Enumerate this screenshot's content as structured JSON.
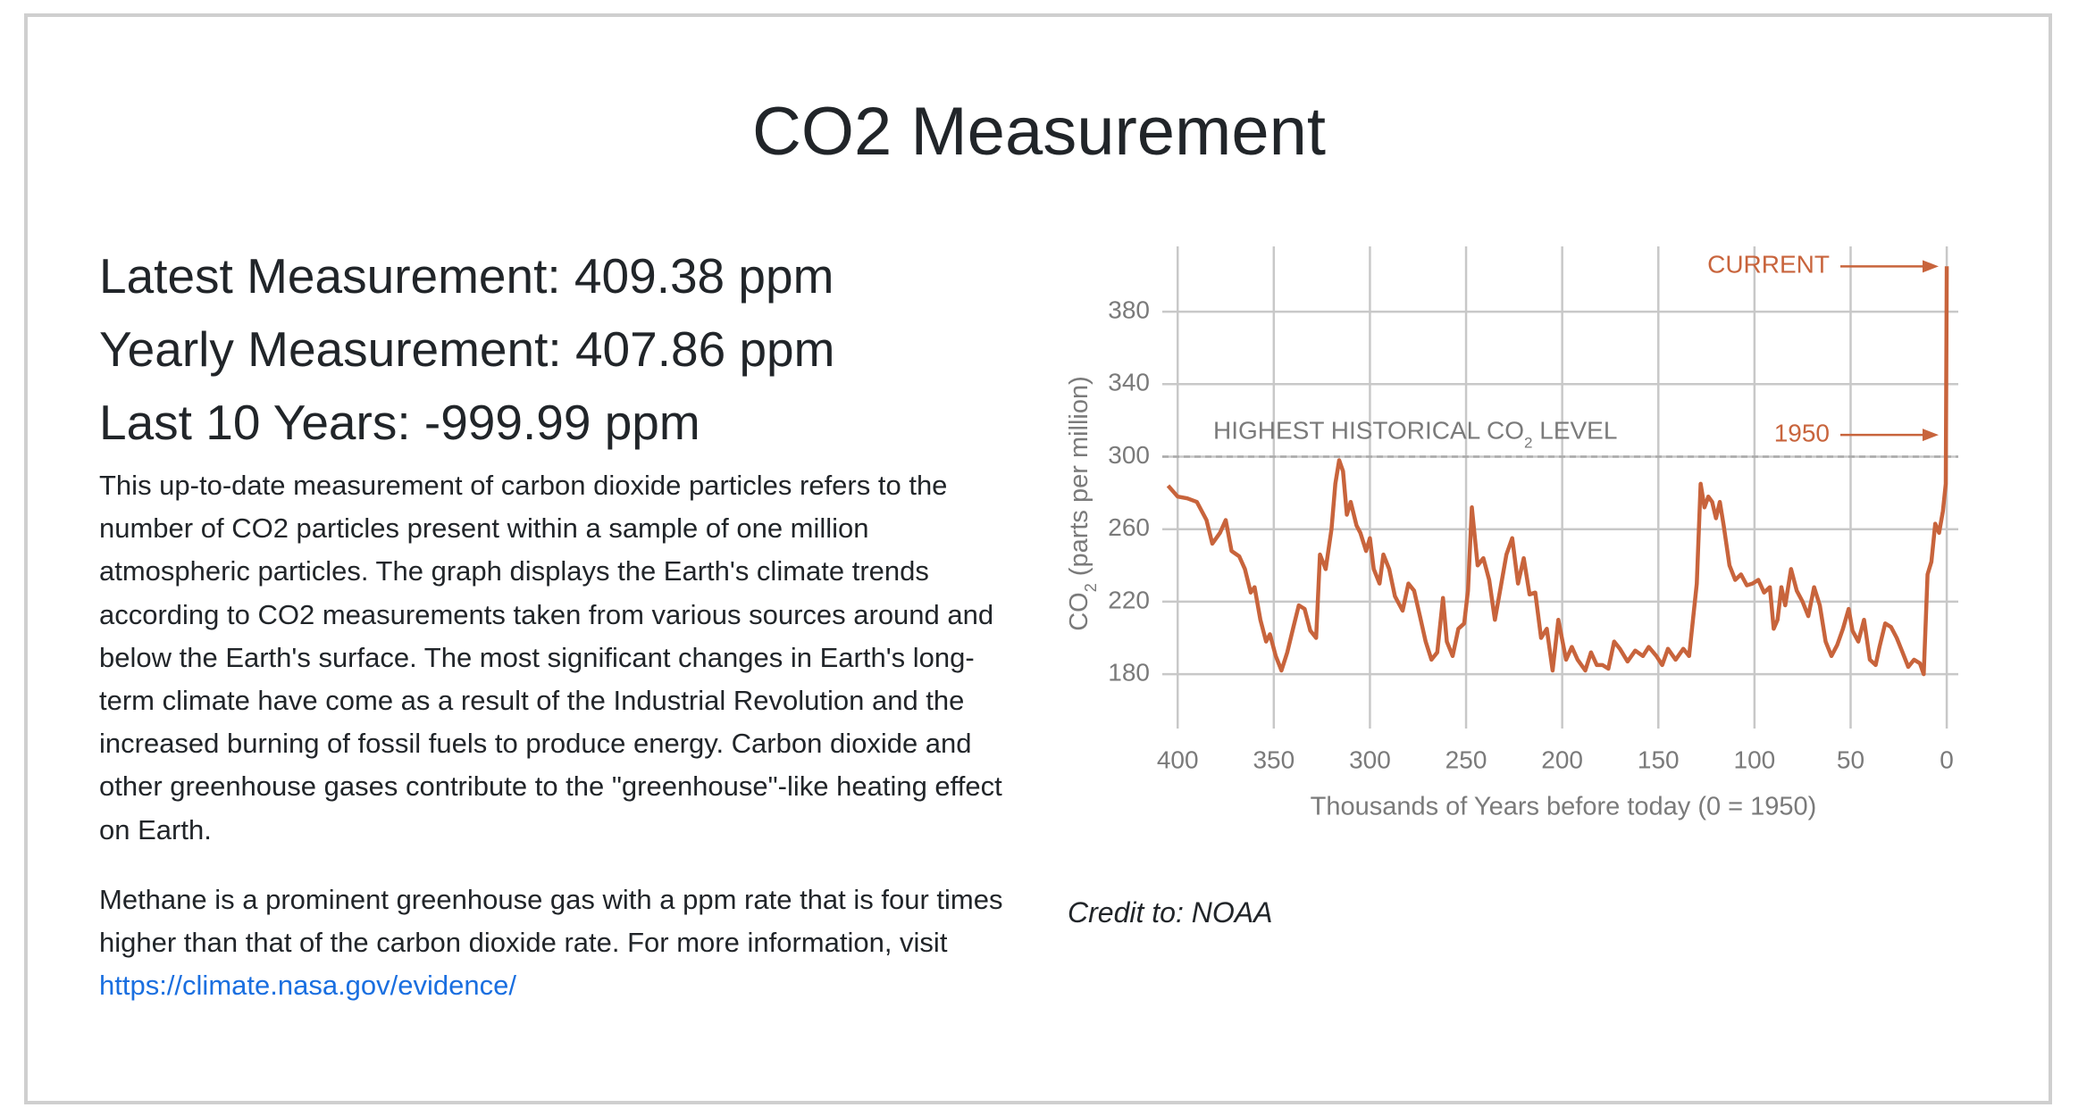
{
  "header": {
    "title": "CO2 Measurement"
  },
  "stats": [
    "Latest Measurement: 409.38 ppm",
    "Yearly Measurement: 407.86 ppm",
    "Last 10 Years: -999.99 ppm"
  ],
  "paragraphs": [
    "This up-to-date measurement of carbon dioxide particles refers to the number of CO2 particles present within a sample of one million atmospheric particles. The graph displays the Earth's climate trends according to CO2 measurements taken from various sources around and below the Earth's surface. The most significant changes in Earth's long-term climate have come as a result of the Industrial Revolution and the increased burning of fossil fuels to produce energy. Carbon dioxide and other greenhouse gases contribute to the \"greenhouse\"-like heating effect on Earth."
  ],
  "methane": {
    "text": "Methane is a prominent greenhouse gas with a ppm rate that is four times higher than that of the carbon dioxide rate. For more information, visit ",
    "link": "https://climate.nasa.gov/evidence/"
  },
  "chart_data": {
    "type": "line",
    "color": "#c8643c",
    "xlabel": "Thousands of Years before today (0 = 1950)",
    "ylabel": [
      "CO",
      "2",
      " (parts per million)"
    ],
    "xlim": [
      408,
      -6
    ],
    "ylim": [
      150,
      416
    ],
    "xticks": [
      400,
      350,
      300,
      250,
      200,
      150,
      100,
      50,
      0
    ],
    "yticks": [
      180,
      220,
      260,
      300,
      340,
      380
    ],
    "grid": true,
    "reference_line": 300,
    "reference_label": [
      "HIGHEST HISTORICAL CO",
      "2",
      " LEVEL"
    ],
    "markers": [
      {
        "label": "CURRENT",
        "value": 405
      },
      {
        "label": "1950",
        "value": 312
      }
    ],
    "x": [
      405,
      400,
      395,
      390,
      385,
      382,
      378,
      375,
      372,
      368,
      365,
      362,
      360,
      357,
      354,
      352,
      349,
      346,
      343,
      340,
      337,
      334,
      331,
      328,
      326,
      323,
      320,
      318,
      316,
      314,
      312,
      310,
      307,
      305,
      302,
      300,
      298,
      295,
      293,
      290,
      287,
      283,
      280,
      277,
      274,
      271,
      268,
      265,
      262,
      260,
      257,
      254,
      251,
      249,
      247,
      244,
      241,
      238,
      235,
      232,
      229,
      226,
      223,
      220,
      217,
      214,
      211,
      208,
      205,
      202,
      198,
      195,
      192,
      188,
      185,
      182,
      179,
      176,
      173,
      170,
      166,
      162,
      158,
      155,
      151,
      148,
      145,
      141,
      137,
      134,
      130,
      128,
      126,
      124,
      122,
      120,
      118,
      116,
      113,
      110,
      107,
      104,
      101,
      98,
      95,
      92,
      90,
      88,
      86,
      84,
      81,
      78,
      75,
      72,
      69,
      66,
      63,
      60,
      57,
      54,
      51,
      49,
      46,
      43,
      40,
      37,
      35,
      32,
      29,
      26,
      23,
      20,
      17,
      14,
      12,
      10,
      8,
      6,
      4,
      2,
      0.5,
      0
    ],
    "values": [
      284,
      278,
      277,
      275,
      265,
      252,
      258,
      265,
      248,
      245,
      238,
      225,
      228,
      210,
      198,
      202,
      190,
      182,
      192,
      205,
      218,
      216,
      204,
      200,
      246,
      238,
      260,
      285,
      298,
      292,
      268,
      275,
      262,
      258,
      248,
      255,
      238,
      230,
      246,
      238,
      223,
      215,
      230,
      226,
      212,
      198,
      188,
      192,
      222,
      198,
      190,
      205,
      208,
      226,
      272,
      240,
      244,
      232,
      210,
      228,
      246,
      255,
      230,
      244,
      224,
      225,
      200,
      205,
      182,
      210,
      188,
      195,
      188,
      182,
      192,
      185,
      185,
      183,
      198,
      194,
      187,
      193,
      190,
      195,
      190,
      185,
      194,
      188,
      194,
      190,
      230,
      285,
      272,
      278,
      275,
      266,
      275,
      262,
      240,
      232,
      235,
      229,
      230,
      232,
      225,
      228,
      205,
      210,
      228,
      218,
      238,
      226,
      220,
      212,
      228,
      218,
      198,
      190,
      196,
      205,
      216,
      204,
      198,
      210,
      188,
      185,
      195,
      208,
      206,
      200,
      192,
      184,
      188,
      186,
      180,
      235,
      242,
      263,
      258,
      270,
      285,
      405
    ]
  },
  "credit": "Credit to: NOAA"
}
